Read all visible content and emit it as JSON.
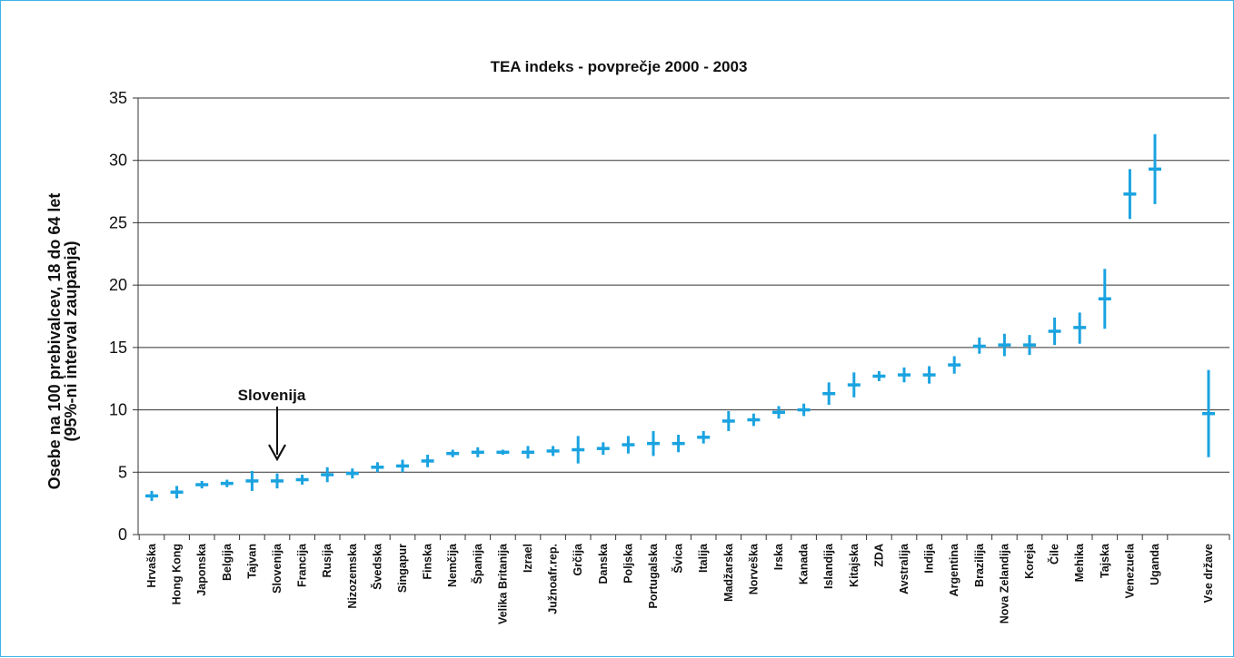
{
  "chart_data": {
    "type": "error_bar",
    "title": "TEA indeks - povprečje 2000 - 2003",
    "ylabel_line1": "Osebe na 100 prebivalcev, 18 do 64 let",
    "ylabel_line2": "(95%-ni interval zaupanja)",
    "xlabel": "",
    "ylim": [
      0,
      35
    ],
    "yticks": [
      0,
      5,
      10,
      15,
      20,
      25,
      30,
      35
    ],
    "grid": "horizontal",
    "accent_color": "#1aa3e0",
    "frame_color": "#3bb4e6",
    "annotation": {
      "text": "Slovenija",
      "target": "Slovenija"
    },
    "categories": [
      "Hrvaška",
      "Hong Kong",
      "Japonska",
      "Belgija",
      "Tajvan",
      "Slovenija",
      "Francija",
      "Rusija",
      "Nizozemska",
      "Švedska",
      "Singapur",
      "Finska",
      "Nemčija",
      "Španija",
      "Velika Britanija",
      "Izrael",
      "Južnoafr.rep.",
      "Grčija",
      "Danska",
      "Poljska",
      "Portugalska",
      "Švica",
      "Italija",
      "Madžarska",
      "Norveška",
      "Irska",
      "Kanada",
      "Islandija",
      "Kitajska",
      "ZDA",
      "Avstralija",
      "Indija",
      "Argentina",
      "Brazilija",
      "Nova Zelandija",
      "Koreja",
      "Čile",
      "Mehika",
      "Tajska",
      "Venezuela",
      "Uganda",
      "Vse države"
    ],
    "series": [
      {
        "values": [
          3.1,
          3.4,
          4.0,
          4.1,
          4.3,
          4.3,
          4.4,
          4.8,
          4.9,
          5.4,
          5.5,
          5.9,
          6.5,
          6.6,
          6.6,
          6.6,
          6.7,
          6.8,
          6.9,
          7.2,
          7.3,
          7.3,
          7.8,
          9.1,
          9.2,
          9.8,
          10.0,
          11.3,
          12.0,
          12.7,
          12.8,
          12.8,
          13.6,
          15.1,
          15.2,
          15.2,
          16.3,
          16.6,
          18.9,
          27.3,
          29.3,
          9.7
        ],
        "lower": [
          2.7,
          2.9,
          3.7,
          3.8,
          3.5,
          3.7,
          4.0,
          4.2,
          4.5,
          5.0,
          5.0,
          5.4,
          6.2,
          6.2,
          6.4,
          6.1,
          6.3,
          5.7,
          6.4,
          6.5,
          6.3,
          6.6,
          7.3,
          8.3,
          8.7,
          9.3,
          9.5,
          10.4,
          11.0,
          12.3,
          12.2,
          12.1,
          12.9,
          14.5,
          14.3,
          14.4,
          15.2,
          15.3,
          16.5,
          25.3,
          26.5,
          6.2
        ],
        "upper": [
          3.5,
          3.9,
          4.3,
          4.4,
          5.1,
          4.9,
          4.8,
          5.4,
          5.3,
          5.8,
          6.0,
          6.4,
          6.8,
          7.0,
          6.8,
          7.1,
          7.1,
          7.9,
          7.4,
          7.9,
          8.3,
          8.0,
          8.3,
          9.9,
          9.7,
          10.3,
          10.5,
          12.2,
          13.0,
          13.1,
          13.4,
          13.5,
          14.3,
          15.8,
          16.1,
          16.0,
          17.4,
          17.8,
          21.3,
          29.3,
          32.1,
          13.2
        ]
      }
    ]
  }
}
